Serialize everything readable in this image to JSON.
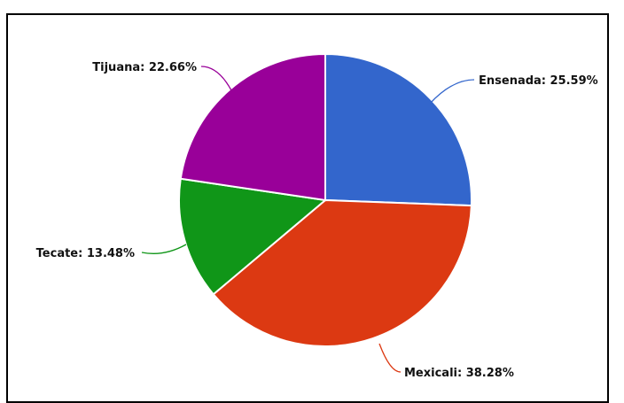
{
  "chart_data": {
    "type": "pie",
    "title": "",
    "slices": [
      {
        "name": "Ensenada",
        "value": 25.59,
        "label": "Ensenada: 25.59%",
        "color": "#3366cc"
      },
      {
        "name": "Mexicali",
        "value": 38.28,
        "label": "Mexicali: 38.28%",
        "color": "#dc3912"
      },
      {
        "name": "Tecate",
        "value": 13.48,
        "label": "Tecate: 13.48%",
        "color": "#109618"
      },
      {
        "name": "Tijuana",
        "value": 22.66,
        "label": "Tijuana: 22.66%",
        "color": "#990099"
      }
    ],
    "start_angle": "12 o'clock",
    "direction": "clockwise"
  }
}
